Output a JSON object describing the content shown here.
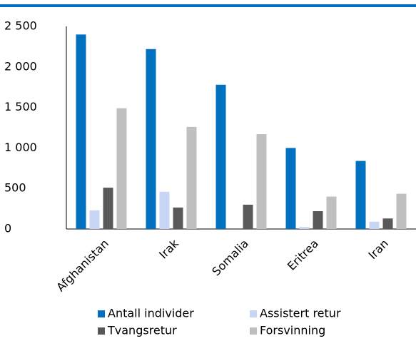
{
  "chart_data": {
    "type": "bar",
    "categories": [
      "Afghanistan",
      "Irak",
      "Somalia",
      "Eritrea",
      "Iran"
    ],
    "series": [
      {
        "name": "Antall individer",
        "color": "#0070c0",
        "values": [
          2400,
          2220,
          1780,
          1000,
          840
        ]
      },
      {
        "name": "Assistert retur",
        "color": "#c9d5f5",
        "values": [
          230,
          460,
          0,
          25,
          90
        ]
      },
      {
        "name": "Tvangsretur",
        "color": "#595959",
        "values": [
          510,
          265,
          300,
          220,
          130
        ]
      },
      {
        "name": "Forsvinning",
        "color": "#bfbfbf",
        "values": [
          1490,
          1260,
          1170,
          400,
          435
        ]
      }
    ],
    "ylim": [
      0,
      2500
    ],
    "yticks": [
      0,
      500,
      {
        "value": 1000,
        "label": "1 000"
      },
      {
        "value": 1500,
        "label": "1 500"
      },
      {
        "value": 2000,
        "label": "2 000"
      },
      {
        "value": 2500,
        "label": "2 500"
      }
    ],
    "grid": false,
    "legend": "bottom"
  }
}
